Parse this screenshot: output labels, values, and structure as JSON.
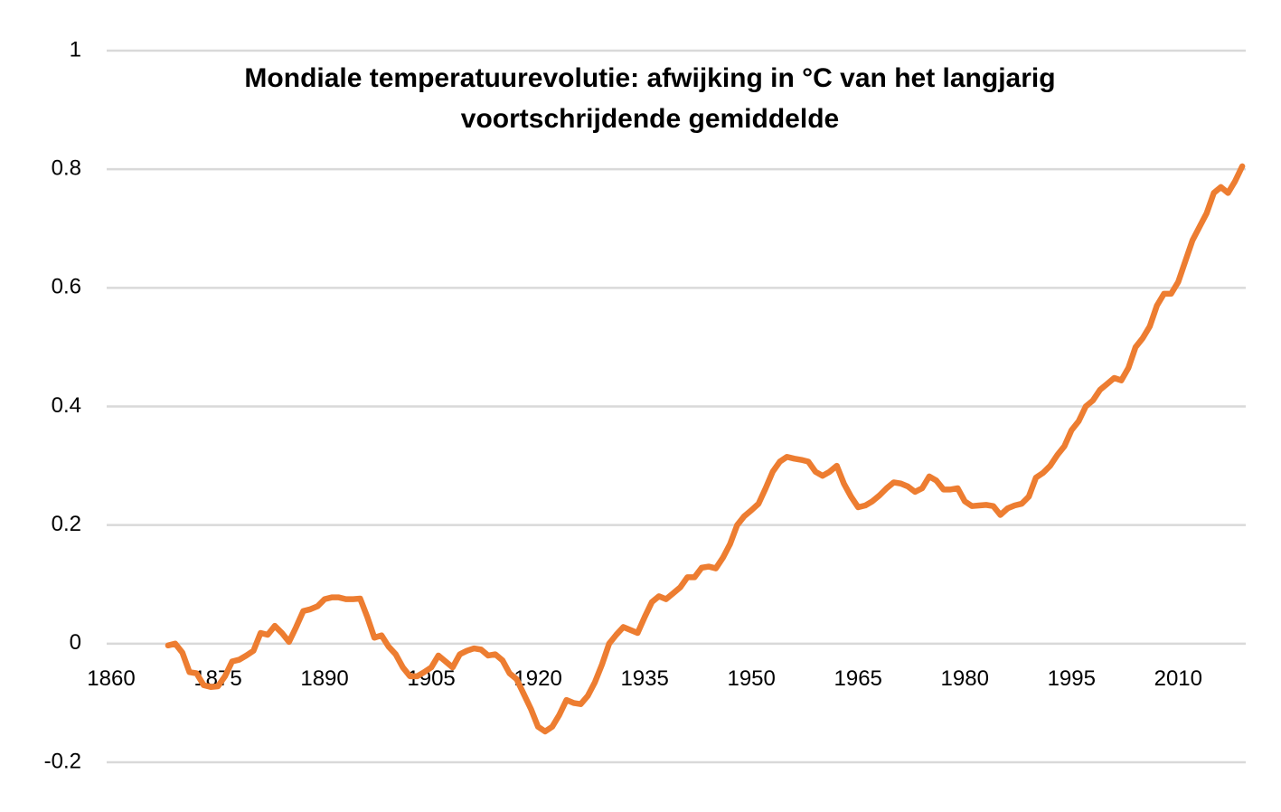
{
  "chart_data": {
    "type": "line",
    "title": [
      "Mondiale temperatuurevolutie: afwijking in °C van het langjarig",
      "voortschrijdende gemiddelde"
    ],
    "x": [
      1868,
      1869,
      1870,
      1871,
      1872,
      1873,
      1874,
      1875,
      1876,
      1877,
      1878,
      1879,
      1880,
      1881,
      1882,
      1883,
      1884,
      1885,
      1886,
      1887,
      1888,
      1889,
      1890,
      1891,
      1892,
      1893,
      1894,
      1895,
      1896,
      1897,
      1898,
      1899,
      1900,
      1901,
      1902,
      1903,
      1904,
      1905,
      1906,
      1907,
      1908,
      1909,
      1910,
      1911,
      1912,
      1913,
      1914,
      1915,
      1916,
      1917,
      1918,
      1919,
      1920,
      1921,
      1922,
      1923,
      1924,
      1925,
      1926,
      1927,
      1928,
      1929,
      1930,
      1931,
      1932,
      1933,
      1934,
      1935,
      1936,
      1937,
      1938,
      1939,
      1940,
      1941,
      1942,
      1943,
      1944,
      1945,
      1946,
      1947,
      1948,
      1949,
      1950,
      1951,
      1952,
      1953,
      1954,
      1955,
      1956,
      1957,
      1958,
      1959,
      1960,
      1961,
      1962,
      1963,
      1964,
      1965,
      1966,
      1967,
      1968,
      1969,
      1970,
      1971,
      1972,
      1973,
      1974,
      1975,
      1976,
      1977,
      1978,
      1979,
      1980,
      1981,
      1982,
      1983,
      1984,
      1985,
      1986,
      1987,
      1988,
      1989,
      1990,
      1991,
      1992,
      1993,
      1994,
      1995,
      1996,
      1997,
      1998,
      1999,
      2000,
      2001,
      2002,
      2003,
      2004,
      2005,
      2006,
      2007,
      2008,
      2009,
      2010,
      2011,
      2012,
      2013,
      2014,
      2015,
      2016,
      2017,
      2018,
      2019
    ],
    "series": [
      {
        "name": "Afwijking",
        "color": "#ed7d31",
        "values": [
          -0.003,
          0,
          -0.015,
          -0.048,
          -0.05,
          -0.07,
          -0.073,
          -0.072,
          -0.055,
          -0.03,
          -0.027,
          -0.02,
          -0.012,
          0.018,
          0.015,
          0.03,
          0.018,
          0.003,
          0.028,
          0.055,
          0.058,
          0.063,
          0.075,
          0.078,
          0.078,
          0.075,
          0.075,
          0.076,
          0.045,
          0.01,
          0.014,
          -0.005,
          -0.018,
          -0.04,
          -0.055,
          -0.055,
          -0.048,
          -0.04,
          -0.02,
          -0.03,
          -0.04,
          -0.018,
          -0.012,
          -0.008,
          -0.01,
          -0.02,
          -0.018,
          -0.028,
          -0.05,
          -0.06,
          -0.085,
          -0.11,
          -0.14,
          -0.148,
          -0.14,
          -0.12,
          -0.095,
          -0.1,
          -0.102,
          -0.088,
          -0.065,
          -0.035,
          0,
          0.015,
          0.028,
          0.023,
          0.018,
          0.045,
          0.07,
          0.08,
          0.075,
          0.085,
          0.095,
          0.112,
          0.112,
          0.128,
          0.13,
          0.127,
          0.145,
          0.168,
          0.2,
          0.215,
          0.225,
          0.236,
          0.262,
          0.29,
          0.307,
          0.315,
          0.312,
          0.31,
          0.307,
          0.29,
          0.283,
          0.29,
          0.3,
          0.27,
          0.248,
          0.23,
          0.233,
          0.24,
          0.25,
          0.262,
          0.272,
          0.27,
          0.265,
          0.256,
          0.262,
          0.282,
          0.275,
          0.26,
          0.26,
          0.262,
          0.24,
          0.232,
          0.233,
          0.234,
          0.232,
          0.217,
          0.228,
          0.233,
          0.236,
          0.248,
          0.28,
          0.288,
          0.3,
          0.318,
          0.333,
          0.36,
          0.375,
          0.4,
          0.41,
          0.428,
          0.438,
          0.448,
          0.444,
          0.465,
          0.5,
          0.515,
          0.535,
          0.57,
          0.59,
          0.59,
          0.61,
          0.645,
          0.68,
          0.703,
          0.726,
          0.76,
          0.77,
          0.76,
          0.78,
          0.805
        ]
      }
    ],
    "xlim": [
      1860,
      2020
    ],
    "xticks": [
      1860,
      1875,
      1890,
      1905,
      1920,
      1935,
      1950,
      1965,
      1980,
      1995,
      2010
    ],
    "ylim": [
      -0.2,
      1
    ],
    "yticks": [
      -0.2,
      0,
      0.2,
      0.4,
      0.6,
      0.8,
      1
    ],
    "grid": true
  }
}
